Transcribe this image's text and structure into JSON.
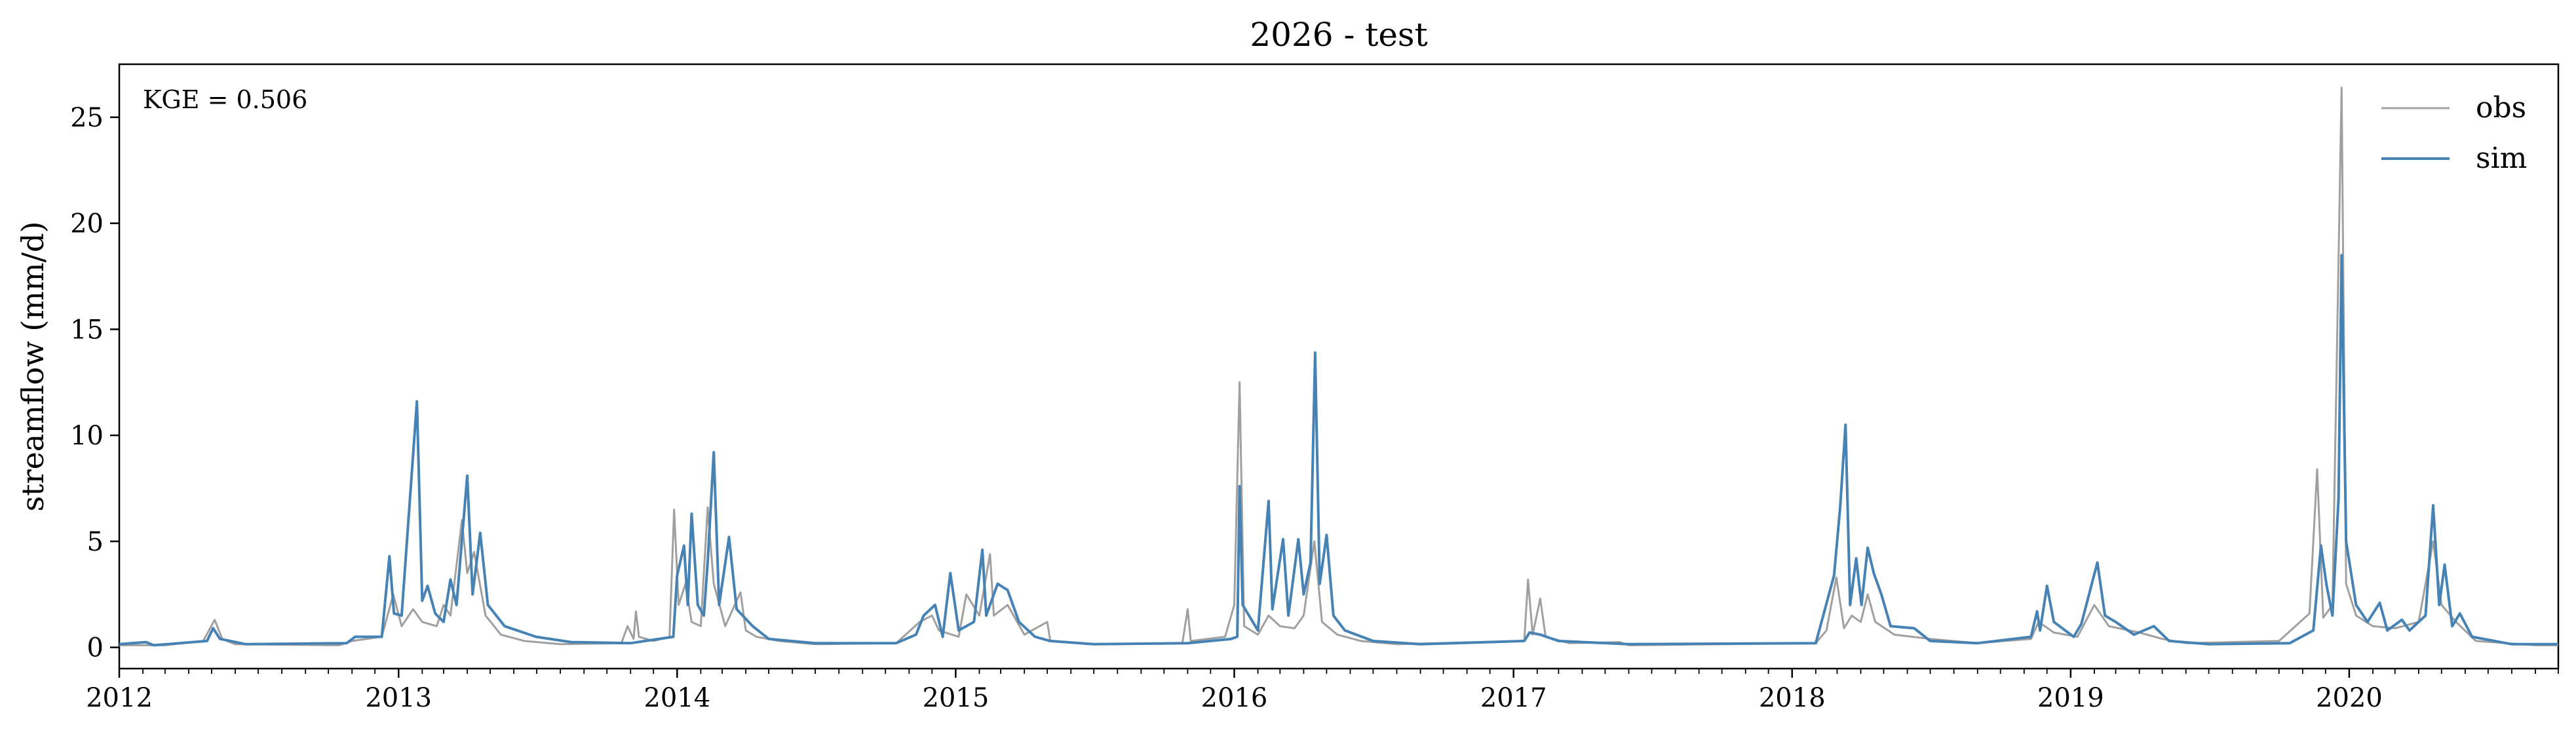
{
  "chart_data": {
    "type": "line",
    "title": "2026 - test",
    "xlabel": "",
    "ylabel": "streamflow (mm/d)",
    "annotation": "KGE = 0.506",
    "legend_position": "top-right",
    "grid": false,
    "xlim": [
      "2012-01-01",
      "2020-10-01"
    ],
    "ylim": [
      -1,
      27.5
    ],
    "x_ticks": [
      "2012",
      "2013",
      "2014",
      "2015",
      "2016",
      "2017",
      "2018",
      "2019",
      "2020"
    ],
    "y_ticks": [
      0,
      5,
      10,
      15,
      20,
      25
    ],
    "series": [
      {
        "name": "obs",
        "color": "#a0a0a0",
        "points": [
          [
            "2012-01-01",
            0.1
          ],
          [
            "2012-03-01",
            0.1
          ],
          [
            "2012-04-20",
            0.3
          ],
          [
            "2012-05-05",
            1.3
          ],
          [
            "2012-05-15",
            0.4
          ],
          [
            "2012-06-01",
            0.15
          ],
          [
            "2012-10-15",
            0.1
          ],
          [
            "2012-11-01",
            0.3
          ],
          [
            "2012-12-10",
            0.5
          ],
          [
            "2012-12-25",
            2.5
          ],
          [
            "2013-01-05",
            1.0
          ],
          [
            "2013-01-20",
            1.8
          ],
          [
            "2013-02-01",
            1.2
          ],
          [
            "2013-02-20",
            1.0
          ],
          [
            "2013-03-01",
            2.0
          ],
          [
            "2013-03-10",
            1.5
          ],
          [
            "2013-03-25",
            6.0
          ],
          [
            "2013-04-01",
            3.5
          ],
          [
            "2013-04-10",
            4.5
          ],
          [
            "2013-04-25",
            1.5
          ],
          [
            "2013-05-15",
            0.6
          ],
          [
            "2013-06-15",
            0.3
          ],
          [
            "2013-08-01",
            0.15
          ],
          [
            "2013-10-20",
            0.2
          ],
          [
            "2013-10-28",
            1.0
          ],
          [
            "2013-11-05",
            0.4
          ],
          [
            "2013-11-08",
            1.7
          ],
          [
            "2013-11-12",
            0.5
          ],
          [
            "2013-12-01",
            0.3
          ],
          [
            "2013-12-22",
            0.5
          ],
          [
            "2013-12-28",
            6.5
          ],
          [
            "2014-01-03",
            2.0
          ],
          [
            "2014-01-12",
            3.0
          ],
          [
            "2014-01-20",
            1.2
          ],
          [
            "2014-02-01",
            1.0
          ],
          [
            "2014-02-10",
            6.6
          ],
          [
            "2014-02-18",
            3.0
          ],
          [
            "2014-03-05",
            1.0
          ],
          [
            "2014-03-25",
            2.6
          ],
          [
            "2014-04-01",
            0.8
          ],
          [
            "2014-04-15",
            0.5
          ],
          [
            "2014-05-15",
            0.3
          ],
          [
            "2014-07-01",
            0.15
          ],
          [
            "2014-10-15",
            0.2
          ],
          [
            "2014-11-15",
            1.2
          ],
          [
            "2014-12-01",
            1.5
          ],
          [
            "2014-12-10",
            0.8
          ],
          [
            "2015-01-05",
            0.5
          ],
          [
            "2015-01-15",
            2.5
          ],
          [
            "2015-02-01",
            1.5
          ],
          [
            "2015-02-15",
            4.4
          ],
          [
            "2015-02-20",
            1.5
          ],
          [
            "2015-03-10",
            2.0
          ],
          [
            "2015-04-01",
            0.6
          ],
          [
            "2015-05-01",
            1.2
          ],
          [
            "2015-05-05",
            0.3
          ],
          [
            "2015-07-01",
            0.15
          ],
          [
            "2015-10-25",
            0.2
          ],
          [
            "2015-11-01",
            1.8
          ],
          [
            "2015-11-05",
            0.3
          ],
          [
            "2015-12-20",
            0.5
          ],
          [
            "2016-01-01",
            2.0
          ],
          [
            "2016-01-08",
            12.5
          ],
          [
            "2016-01-14",
            1.0
          ],
          [
            "2016-02-01",
            0.6
          ],
          [
            "2016-02-15",
            1.5
          ],
          [
            "2016-03-01",
            1.0
          ],
          [
            "2016-03-20",
            0.9
          ],
          [
            "2016-04-01",
            1.5
          ],
          [
            "2016-04-15",
            5.0
          ],
          [
            "2016-04-25",
            1.2
          ],
          [
            "2016-05-15",
            0.6
          ],
          [
            "2016-06-15",
            0.3
          ],
          [
            "2016-08-01",
            0.15
          ],
          [
            "2017-01-15",
            0.3
          ],
          [
            "2017-01-20",
            3.2
          ],
          [
            "2017-01-26",
            0.6
          ],
          [
            "2017-02-05",
            2.3
          ],
          [
            "2017-02-12",
            0.5
          ],
          [
            "2017-03-15",
            0.2
          ],
          [
            "2017-05-20",
            0.25
          ],
          [
            "2017-06-01",
            0.1
          ],
          [
            "2018-02-01",
            0.2
          ],
          [
            "2018-02-15",
            0.8
          ],
          [
            "2018-02-28",
            3.3
          ],
          [
            "2018-03-10",
            0.9
          ],
          [
            "2018-03-20",
            1.5
          ],
          [
            "2018-04-01",
            1.2
          ],
          [
            "2018-04-10",
            2.5
          ],
          [
            "2018-04-20",
            1.2
          ],
          [
            "2018-05-15",
            0.6
          ],
          [
            "2018-07-01",
            0.4
          ],
          [
            "2018-09-01",
            0.2
          ],
          [
            "2018-11-10",
            0.4
          ],
          [
            "2018-11-20",
            1.2
          ],
          [
            "2018-12-10",
            0.7
          ],
          [
            "2019-01-10",
            0.5
          ],
          [
            "2019-02-01",
            2.0
          ],
          [
            "2019-02-20",
            1.0
          ],
          [
            "2019-04-01",
            0.7
          ],
          [
            "2019-05-01",
            0.4
          ],
          [
            "2019-06-01",
            0.2
          ],
          [
            "2019-10-01",
            0.3
          ],
          [
            "2019-11-10",
            1.6
          ],
          [
            "2019-11-20",
            8.4
          ],
          [
            "2019-11-28",
            1.4
          ],
          [
            "2019-12-10",
            2.0
          ],
          [
            "2019-12-22",
            26.4
          ],
          [
            "2019-12-28",
            3.0
          ],
          [
            "2020-01-10",
            1.5
          ],
          [
            "2020-02-01",
            1.0
          ],
          [
            "2020-03-01",
            0.9
          ],
          [
            "2020-04-01",
            1.2
          ],
          [
            "2020-04-20",
            5.0
          ],
          [
            "2020-05-01",
            2.0
          ],
          [
            "2020-05-20",
            1.2
          ],
          [
            "2020-06-15",
            0.3
          ],
          [
            "2020-09-01",
            0.1
          ],
          [
            "2020-10-01",
            0.1
          ]
        ]
      },
      {
        "name": "sim",
        "color": "#4682b4",
        "points": [
          [
            "2012-01-01",
            0.15
          ],
          [
            "2012-02-05",
            0.25
          ],
          [
            "2012-02-15",
            0.1
          ],
          [
            "2012-04-25",
            0.3
          ],
          [
            "2012-05-03",
            0.9
          ],
          [
            "2012-05-12",
            0.4
          ],
          [
            "2012-06-15",
            0.15
          ],
          [
            "2012-10-25",
            0.2
          ],
          [
            "2012-11-05",
            0.5
          ],
          [
            "2012-12-10",
            0.5
          ],
          [
            "2012-12-20",
            4.3
          ],
          [
            "2012-12-26",
            1.6
          ],
          [
            "2013-01-05",
            1.5
          ],
          [
            "2013-01-25",
            11.6
          ],
          [
            "2013-02-01",
            2.2
          ],
          [
            "2013-02-08",
            2.9
          ],
          [
            "2013-02-18",
            1.6
          ],
          [
            "2013-03-01",
            1.2
          ],
          [
            "2013-03-10",
            3.2
          ],
          [
            "2013-03-18",
            2.0
          ],
          [
            "2013-04-01",
            8.1
          ],
          [
            "2013-04-08",
            2.5
          ],
          [
            "2013-04-18",
            5.4
          ],
          [
            "2013-04-28",
            2.0
          ],
          [
            "2013-05-20",
            1.0
          ],
          [
            "2013-06-30",
            0.5
          ],
          [
            "2013-08-15",
            0.25
          ],
          [
            "2013-11-01",
            0.2
          ],
          [
            "2013-12-27",
            0.5
          ],
          [
            "2014-01-01",
            3.4
          ],
          [
            "2014-01-10",
            4.8
          ],
          [
            "2014-01-15",
            2.0
          ],
          [
            "2014-01-20",
            6.3
          ],
          [
            "2014-01-28",
            2.0
          ],
          [
            "2014-02-05",
            1.5
          ],
          [
            "2014-02-10",
            4.0
          ],
          [
            "2014-02-18",
            9.2
          ],
          [
            "2014-02-25",
            2.0
          ],
          [
            "2014-03-10",
            5.2
          ],
          [
            "2014-03-20",
            1.8
          ],
          [
            "2014-04-10",
            1.0
          ],
          [
            "2014-05-01",
            0.4
          ],
          [
            "2014-07-01",
            0.2
          ],
          [
            "2014-10-15",
            0.2
          ],
          [
            "2014-11-10",
            0.6
          ],
          [
            "2014-11-20",
            1.5
          ],
          [
            "2014-12-05",
            2.0
          ],
          [
            "2014-12-15",
            0.5
          ],
          [
            "2014-12-25",
            3.5
          ],
          [
            "2015-01-05",
            0.8
          ],
          [
            "2015-01-25",
            1.2
          ],
          [
            "2015-02-05",
            4.6
          ],
          [
            "2015-02-10",
            1.5
          ],
          [
            "2015-02-25",
            3.0
          ],
          [
            "2015-03-10",
            2.7
          ],
          [
            "2015-03-25",
            1.2
          ],
          [
            "2015-04-15",
            0.5
          ],
          [
            "2015-05-05",
            0.3
          ],
          [
            "2015-07-01",
            0.15
          ],
          [
            "2015-11-01",
            0.2
          ],
          [
            "2015-12-28",
            0.4
          ],
          [
            "2016-01-05",
            0.5
          ],
          [
            "2016-01-08",
            7.6
          ],
          [
            "2016-01-12",
            2.0
          ],
          [
            "2016-02-01",
            0.8
          ],
          [
            "2016-02-15",
            6.9
          ],
          [
            "2016-02-20",
            1.8
          ],
          [
            "2016-03-05",
            5.1
          ],
          [
            "2016-03-12",
            1.5
          ],
          [
            "2016-03-25",
            5.1
          ],
          [
            "2016-04-01",
            2.5
          ],
          [
            "2016-04-10",
            4.0
          ],
          [
            "2016-04-16",
            13.9
          ],
          [
            "2016-04-22",
            3.0
          ],
          [
            "2016-05-01",
            5.3
          ],
          [
            "2016-05-10",
            1.5
          ],
          [
            "2016-05-25",
            0.8
          ],
          [
            "2016-07-01",
            0.3
          ],
          [
            "2016-09-01",
            0.15
          ],
          [
            "2017-01-15",
            0.3
          ],
          [
            "2017-01-22",
            0.7
          ],
          [
            "2017-02-05",
            0.6
          ],
          [
            "2017-03-01",
            0.3
          ],
          [
            "2017-06-01",
            0.15
          ],
          [
            "2018-02-01",
            0.2
          ],
          [
            "2018-02-25",
            3.4
          ],
          [
            "2018-03-05",
            6.6
          ],
          [
            "2018-03-12",
            10.5
          ],
          [
            "2018-03-18",
            2.0
          ],
          [
            "2018-03-26",
            4.2
          ],
          [
            "2018-04-02",
            2.0
          ],
          [
            "2018-04-10",
            4.7
          ],
          [
            "2018-04-18",
            3.5
          ],
          [
            "2018-04-28",
            2.5
          ],
          [
            "2018-05-10",
            1.0
          ],
          [
            "2018-06-10",
            0.9
          ],
          [
            "2018-07-01",
            0.3
          ],
          [
            "2018-09-01",
            0.2
          ],
          [
            "2018-11-10",
            0.5
          ],
          [
            "2018-11-18",
            1.7
          ],
          [
            "2018-11-22",
            0.8
          ],
          [
            "2018-12-01",
            2.9
          ],
          [
            "2018-12-10",
            1.2
          ],
          [
            "2019-01-05",
            0.5
          ],
          [
            "2019-01-15",
            1.1
          ],
          [
            "2019-02-05",
            4.0
          ],
          [
            "2019-02-15",
            1.5
          ],
          [
            "2019-03-01",
            1.2
          ],
          [
            "2019-03-25",
            0.6
          ],
          [
            "2019-04-20",
            1.0
          ],
          [
            "2019-05-10",
            0.3
          ],
          [
            "2019-07-01",
            0.15
          ],
          [
            "2019-10-15",
            0.2
          ],
          [
            "2019-11-15",
            0.8
          ],
          [
            "2019-11-25",
            4.8
          ],
          [
            "2019-12-02",
            3.0
          ],
          [
            "2019-12-10",
            1.5
          ],
          [
            "2019-12-18",
            7.0
          ],
          [
            "2019-12-22",
            18.5
          ],
          [
            "2019-12-28",
            5.0
          ],
          [
            "2020-01-10",
            2.0
          ],
          [
            "2020-01-25",
            1.2
          ],
          [
            "2020-02-10",
            2.1
          ],
          [
            "2020-02-20",
            0.8
          ],
          [
            "2020-03-10",
            1.3
          ],
          [
            "2020-03-20",
            0.8
          ],
          [
            "2020-04-10",
            1.5
          ],
          [
            "2020-04-20",
            6.7
          ],
          [
            "2020-04-28",
            2.0
          ],
          [
            "2020-05-05",
            3.9
          ],
          [
            "2020-05-15",
            1.0
          ],
          [
            "2020-05-25",
            1.6
          ],
          [
            "2020-06-10",
            0.5
          ],
          [
            "2020-08-01",
            0.15
          ],
          [
            "2020-10-01",
            0.15
          ]
        ]
      }
    ]
  }
}
